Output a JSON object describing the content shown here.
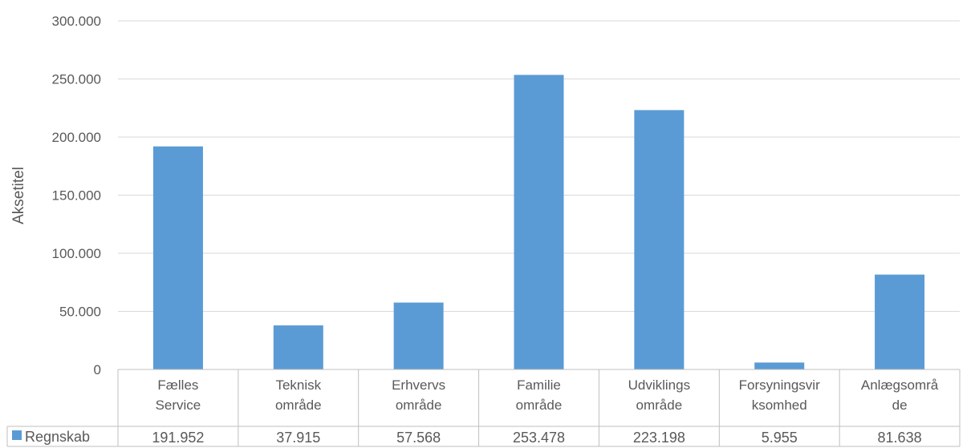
{
  "chart_data": {
    "type": "bar",
    "ylabel": "Aksetitel",
    "ylim": [
      0,
      300000
    ],
    "yticks": [
      {
        "value": 0,
        "label": "0"
      },
      {
        "value": 50000,
        "label": "50.000"
      },
      {
        "value": 100000,
        "label": "100.000"
      },
      {
        "value": 150000,
        "label": "150.000"
      },
      {
        "value": 200000,
        "label": "200.000"
      },
      {
        "value": 250000,
        "label": "250.000"
      },
      {
        "value": 300000,
        "label": "300.000"
      }
    ],
    "categories": [
      [
        "Fælles",
        "Service"
      ],
      [
        "Teknisk",
        "område"
      ],
      [
        "Erhvervs",
        "område"
      ],
      [
        "Familie",
        "område"
      ],
      [
        "Udviklings",
        "område"
      ],
      [
        "Forsyningsvir",
        "ksomhed"
      ],
      [
        "Anlægsområ",
        "de"
      ]
    ],
    "series": [
      {
        "name": "Regnskab",
        "color": "#5b9bd5",
        "values": [
          191952,
          37915,
          57568,
          253478,
          223198,
          5955,
          81638
        ],
        "labels": [
          "191.952",
          "37.915",
          "57.568",
          "253.478",
          "223.198",
          "5.955",
          "81.638"
        ]
      }
    ],
    "grid": true,
    "legend": "data-table"
  }
}
